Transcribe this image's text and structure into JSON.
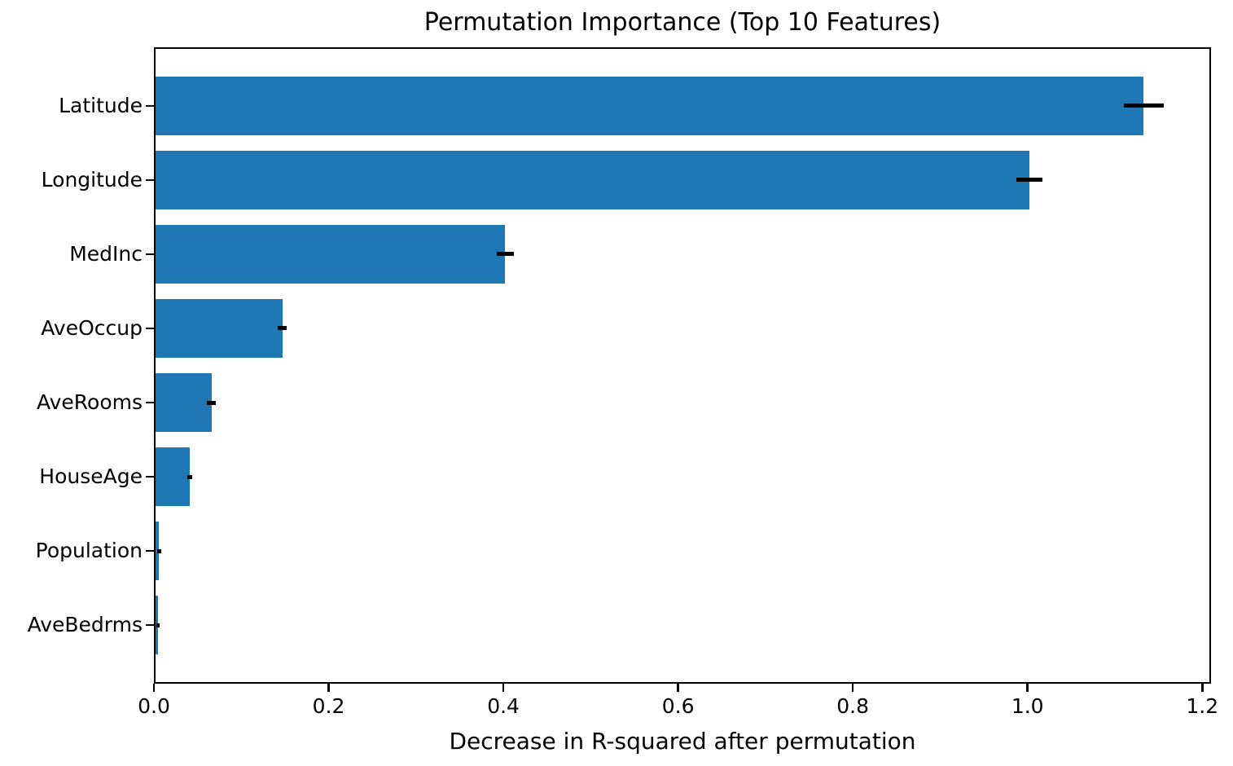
{
  "chart_data": {
    "type": "bar",
    "orientation": "horizontal",
    "title": "Permutation Importance (Top 10 Features)",
    "xlabel": "Decrease in R-squared after permutation",
    "ylabel": "",
    "categories": [
      "Latitude",
      "Longitude",
      "MedInc",
      "AveOccup",
      "AveRooms",
      "HouseAge",
      "Population",
      "AveBedrms"
    ],
    "values": [
      1.133,
      1.002,
      0.402,
      0.147,
      0.066,
      0.041,
      0.006,
      0.005
    ],
    "errors": [
      0.023,
      0.015,
      0.01,
      0.005,
      0.005,
      0.003,
      0.002,
      0.002
    ],
    "x_ticks": [
      0.0,
      0.2,
      0.4,
      0.6,
      0.8,
      1.0,
      1.2
    ],
    "x_tick_labels": [
      "0.0",
      "0.2",
      "0.4",
      "0.6",
      "0.8",
      "1.0",
      "1.2"
    ],
    "xlim": [
      0,
      1.21
    ],
    "bar_color": "#1f77b4",
    "error_bar_color": "#000000",
    "bar_height_fraction": 0.8,
    "grid": false,
    "legend": false
  }
}
